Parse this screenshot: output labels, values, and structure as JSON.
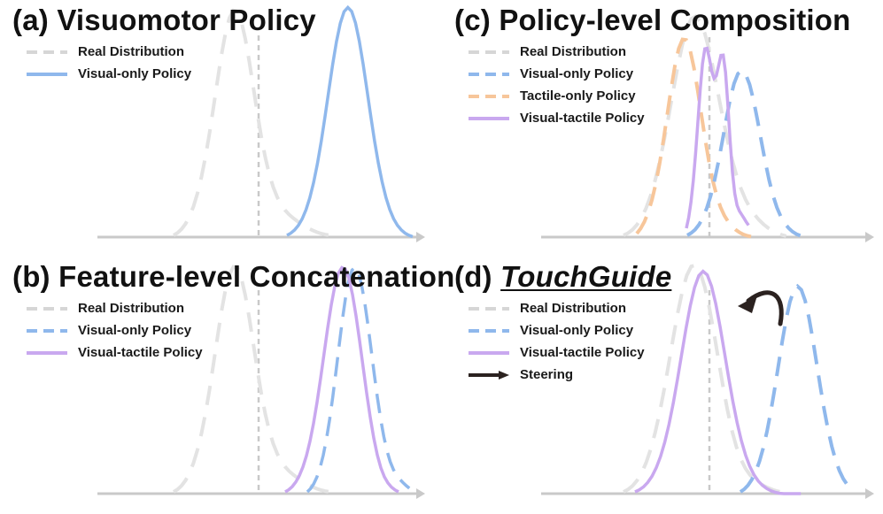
{
  "colors": {
    "real": "#d6d6d6",
    "visual": "#8fb8ec",
    "tactile": "#f7c69a",
    "visual_tactile": "#c9a8ef",
    "axis": "#c9c9c9",
    "arrow": "#2b2220"
  },
  "panels": {
    "a": {
      "title_prefix": "(a) ",
      "title": "Visuomotor Policy",
      "legend": [
        {
          "label": "Real Distribution",
          "style": "dashed",
          "color_key": "real"
        },
        {
          "label": "Visual-only Policy",
          "style": "solid",
          "color_key": "visual"
        }
      ]
    },
    "b": {
      "title_prefix": "(b) ",
      "title": "Feature-level Concatenation",
      "legend": [
        {
          "label": "Real Distribution",
          "style": "dashed",
          "color_key": "real"
        },
        {
          "label": "Visual-only Policy",
          "style": "dashed",
          "color_key": "visual"
        },
        {
          "label": "Visual-tactile Policy",
          "style": "solid",
          "color_key": "visual_tactile"
        }
      ]
    },
    "c": {
      "title_prefix": "(c) ",
      "title": "Policy-level Composition",
      "legend": [
        {
          "label": "Real Distribution",
          "style": "dashed",
          "color_key": "real"
        },
        {
          "label": "Visual-only Policy",
          "style": "dashed",
          "color_key": "visual"
        },
        {
          "label": "Tactile-only Policy",
          "style": "dashed",
          "color_key": "tactile"
        },
        {
          "label": "Visual-tactile Policy",
          "style": "solid",
          "color_key": "visual_tactile"
        }
      ]
    },
    "d": {
      "title_prefix": "(d) ",
      "title": "TouchGuide",
      "legend": [
        {
          "label": "Real Distribution",
          "style": "dashed",
          "color_key": "real"
        },
        {
          "label": "Visual-only Policy",
          "style": "dashed",
          "color_key": "visual"
        },
        {
          "label": "Visual-tactile Policy",
          "style": "solid",
          "color_key": "visual_tactile"
        },
        {
          "label": "Steering",
          "style": "arrow",
          "color_key": "arrow"
        }
      ]
    }
  }
}
